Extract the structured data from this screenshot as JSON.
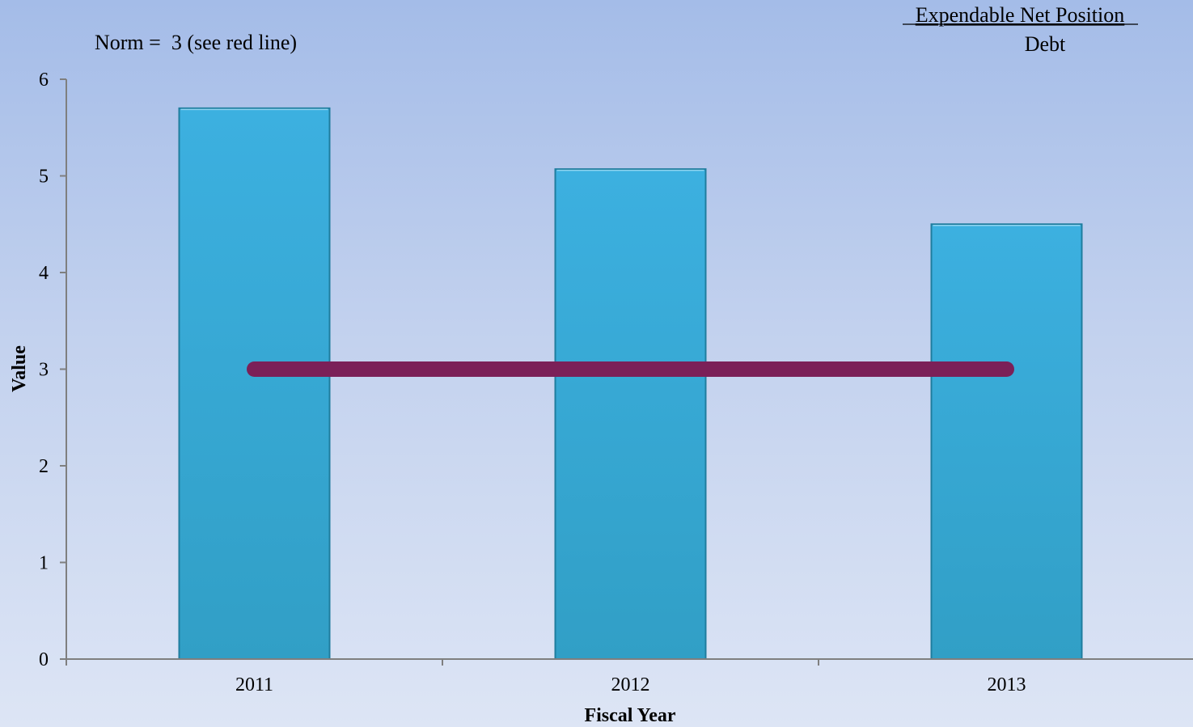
{
  "chart_data": {
    "type": "bar",
    "categories": [
      "2011",
      "2012",
      "2013"
    ],
    "values": [
      5.7,
      5.07,
      4.5
    ],
    "reference_line": {
      "value": 3,
      "color": "#7b2058"
    },
    "norm_note": "Norm =  3 (see red line)",
    "ratio_numerator": "Expendable Net Position",
    "ratio_denominator": "Debt",
    "xlabel": "Fiscal Year",
    "ylabel": "Value",
    "ylim": [
      0,
      6
    ],
    "yticks": [
      0,
      1,
      2,
      3,
      4,
      5,
      6
    ],
    "grid": false,
    "bar_color": "#38a8d8"
  }
}
